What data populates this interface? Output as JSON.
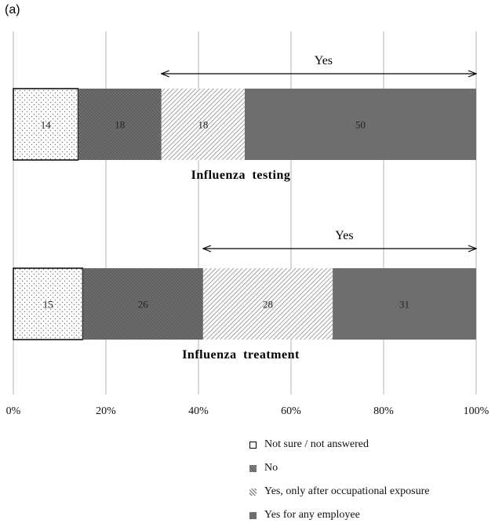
{
  "panel_label": "(a)",
  "chart_data": {
    "type": "bar",
    "orientation": "horizontal",
    "stacked": true,
    "categories": [
      "Influenza testing",
      "Influenza treatment"
    ],
    "series": [
      {
        "name": "Not sure / not answered",
        "values": [
          14,
          15
        ],
        "color": "#ffffff",
        "pattern": "dots"
      },
      {
        "name": "No",
        "values": [
          18,
          26
        ],
        "color": "#666666",
        "pattern": "dense-dots"
      },
      {
        "name": "Yes, only after occupational exposure",
        "values": [
          18,
          28
        ],
        "color": "#ffffff",
        "pattern": "diagonal-hatch"
      },
      {
        "name": "Yes for any employee",
        "values": [
          50,
          31
        ],
        "color": "#6e6e6e",
        "pattern": "solid"
      }
    ],
    "xlim": [
      0,
      100
    ],
    "x_ticks": [
      "0%",
      "20%",
      "40%",
      "60%",
      "80%",
      "100%"
    ],
    "grid": true,
    "legend_position": "bottom-right",
    "annotations": [
      {
        "text": "Yes",
        "category": "Influenza testing",
        "from": 32,
        "to": 100
      },
      {
        "text": "Yes",
        "category": "Influenza treatment",
        "from": 41,
        "to": 100
      }
    ]
  }
}
